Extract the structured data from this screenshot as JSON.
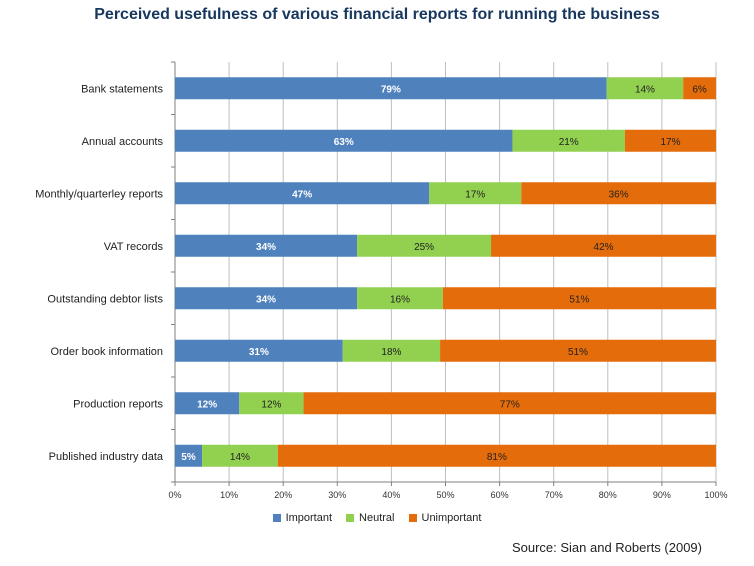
{
  "chart_data": {
    "type": "bar",
    "orientation": "horizontal-stacked-100",
    "title": "Perceived usefulness of various financial reports for running the business",
    "categories": [
      "Bank statements",
      "Annual accounts",
      "Monthly/quarterley reports",
      "VAT records",
      "Outstanding debtor lists",
      "Order book information",
      "Production reports",
      "Published industry data"
    ],
    "series": [
      {
        "name": "Important",
        "color": "#4f81bd",
        "values": [
          79,
          63,
          47,
          34,
          34,
          31,
          12,
          5
        ],
        "labels": [
          "79%",
          "63%",
          "47%",
          "34%",
          "34%",
          "31%",
          "12%",
          "5%"
        ]
      },
      {
        "name": "Neutral",
        "color": "#92d050",
        "values": [
          14,
          21,
          17,
          25,
          16,
          18,
          12,
          14
        ],
        "labels": [
          "14%",
          "21%",
          "17%",
          "25%",
          "16%",
          "18%",
          "12%",
          "14%"
        ]
      },
      {
        "name": "Unimportant",
        "color": "#e46c0a",
        "values": [
          6,
          17,
          36,
          42,
          51,
          51,
          77,
          81
        ],
        "labels": [
          "6%",
          "17%",
          "36%",
          "42%",
          "51%",
          "51%",
          "77%",
          "81%"
        ]
      }
    ],
    "x_ticks": [
      "0%",
      "10%",
      "20%",
      "30%",
      "40%",
      "50%",
      "60%",
      "70%",
      "80%",
      "90%",
      "100%"
    ],
    "xlim": [
      0,
      100
    ],
    "grid": true,
    "legend_position": "bottom"
  },
  "source": "Source: Sian and Roberts (2009)"
}
